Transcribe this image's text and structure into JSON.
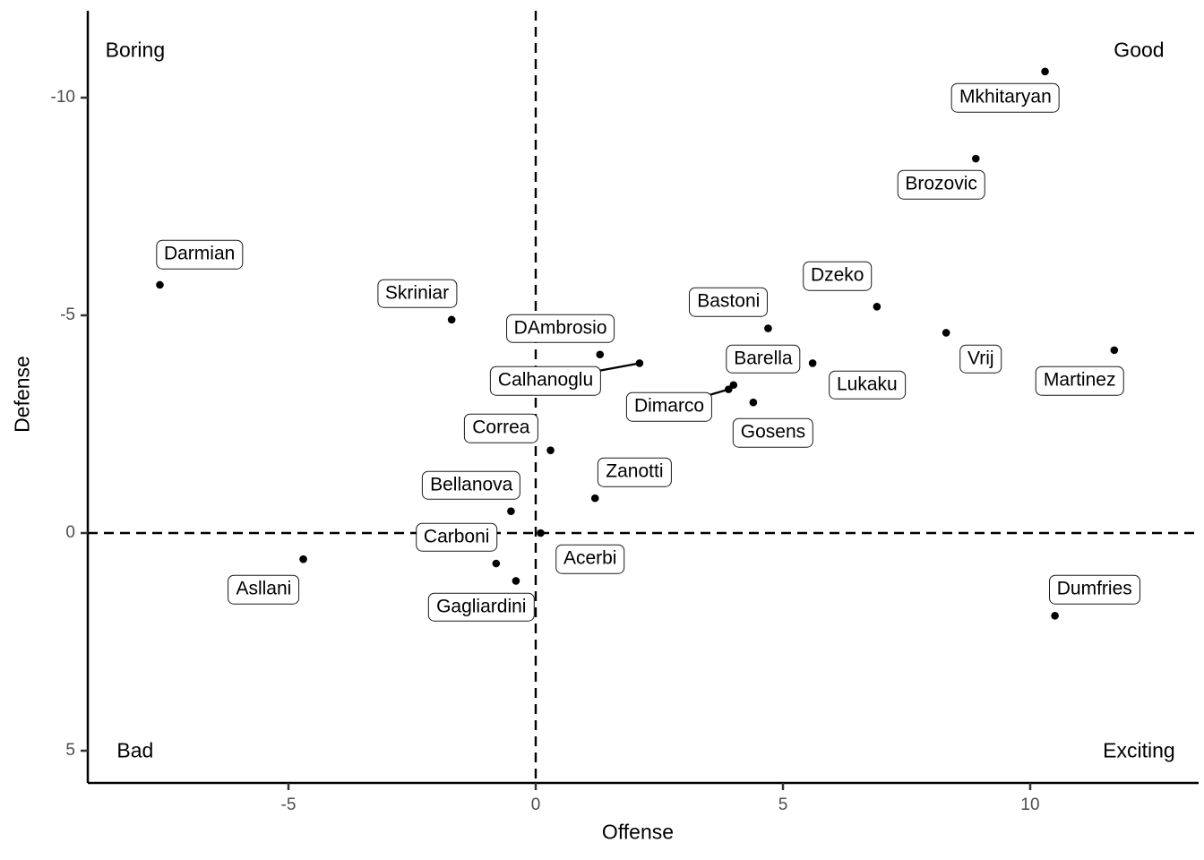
{
  "chart_data": {
    "type": "scatter",
    "title": "",
    "xlabel": "Offense",
    "ylabel": "Defense",
    "x_ticks": [
      -5,
      0,
      5,
      10
    ],
    "y_ticks": [
      -10,
      -5,
      0,
      5
    ],
    "x_range": [
      -9.1,
      13.3
    ],
    "y_range": [
      -11.95,
      5.75
    ],
    "y_axis_reversed": true,
    "grid": false,
    "legend": "none",
    "reference_lines": [
      {
        "axis": "vertical",
        "at": 0,
        "style": "dashed"
      },
      {
        "axis": "horizontal",
        "at": 0,
        "style": "dashed"
      }
    ],
    "point_color": "#000000",
    "label_box_color": "#ffffff",
    "label_border_color": "#1a1a1a",
    "tick_text_color": "#4d4d4d",
    "quadrant_annotations": [
      {
        "text": "Boring",
        "x": -8.1,
        "y": -11.1
      },
      {
        "text": "Good",
        "x": 12.2,
        "y": -11.1
      },
      {
        "text": "Bad",
        "x": -8.1,
        "y": 5.0
      },
      {
        "text": "Exciting",
        "x": 12.2,
        "y": 5.0
      }
    ],
    "players": [
      {
        "name": "Mkhitaryan",
        "x": 10.3,
        "y": -10.6,
        "label_x": 9.5,
        "label_y": -10.0,
        "leader": false
      },
      {
        "name": "Brozovic",
        "x": 8.9,
        "y": -8.6,
        "label_x": 8.2,
        "label_y": -8.0,
        "leader": false
      },
      {
        "name": "Darmian",
        "x": -7.6,
        "y": -5.7,
        "label_x": -6.8,
        "label_y": -6.4,
        "leader": false
      },
      {
        "name": "Dzeko",
        "x": 6.9,
        "y": -5.2,
        "label_x": 6.1,
        "label_y": -5.9,
        "leader": false
      },
      {
        "name": "Skriniar",
        "x": -1.7,
        "y": -4.9,
        "label_x": -2.4,
        "label_y": -5.5,
        "leader": false
      },
      {
        "name": "Bastoni",
        "x": 4.7,
        "y": -4.7,
        "label_x": 3.9,
        "label_y": -5.3,
        "leader": false
      },
      {
        "name": "Vrij",
        "x": 8.3,
        "y": -4.6,
        "label_x": 9.0,
        "label_y": -4.0,
        "leader": false
      },
      {
        "name": "Martinez",
        "x": 11.7,
        "y": -4.2,
        "label_x": 11.0,
        "label_y": -3.5,
        "leader": false
      },
      {
        "name": "DAmbrosio",
        "x": 1.3,
        "y": -4.1,
        "label_x": 0.5,
        "label_y": -4.7,
        "leader": false
      },
      {
        "name": "Calhanoglu",
        "x": 2.1,
        "y": -3.9,
        "label_x": 0.2,
        "label_y": -3.5,
        "leader": true
      },
      {
        "name": "Lukaku",
        "x": 5.6,
        "y": -3.9,
        "label_x": 6.7,
        "label_y": -3.4,
        "leader": false
      },
      {
        "name": "Barella",
        "x": 4.0,
        "y": -3.4,
        "label_x": 4.6,
        "label_y": -4.0,
        "leader": false
      },
      {
        "name": "Dimarco",
        "x": 3.9,
        "y": -3.3,
        "label_x": 2.7,
        "label_y": -2.9,
        "leader": true
      },
      {
        "name": "Gosens",
        "x": 4.4,
        "y": -3.0,
        "label_x": 4.8,
        "label_y": -2.3,
        "leader": false
      },
      {
        "name": "Correa",
        "x": 0.3,
        "y": -1.9,
        "label_x": -0.7,
        "label_y": -2.4,
        "leader": false
      },
      {
        "name": "Zanotti",
        "x": 1.2,
        "y": -0.8,
        "label_x": 2.0,
        "label_y": -1.4,
        "leader": false
      },
      {
        "name": "Bellanova",
        "x": -0.5,
        "y": -0.5,
        "label_x": -1.3,
        "label_y": -1.1,
        "leader": false
      },
      {
        "name": "Acerbi",
        "x": 0.1,
        "y": 0.0,
        "label_x": 1.1,
        "label_y": 0.6,
        "leader": false
      },
      {
        "name": "Carboni",
        "x": -0.8,
        "y": 0.7,
        "label_x": -1.6,
        "label_y": 0.1,
        "leader": false
      },
      {
        "name": "Gagliardini",
        "x": -0.4,
        "y": 1.1,
        "label_x": -1.1,
        "label_y": 1.7,
        "leader": false
      },
      {
        "name": "Asllani",
        "x": -4.7,
        "y": 0.6,
        "label_x": -5.5,
        "label_y": 1.3,
        "leader": false
      },
      {
        "name": "Dumfries",
        "x": 10.5,
        "y": 1.9,
        "label_x": 11.3,
        "label_y": 1.3,
        "leader": false
      }
    ]
  }
}
